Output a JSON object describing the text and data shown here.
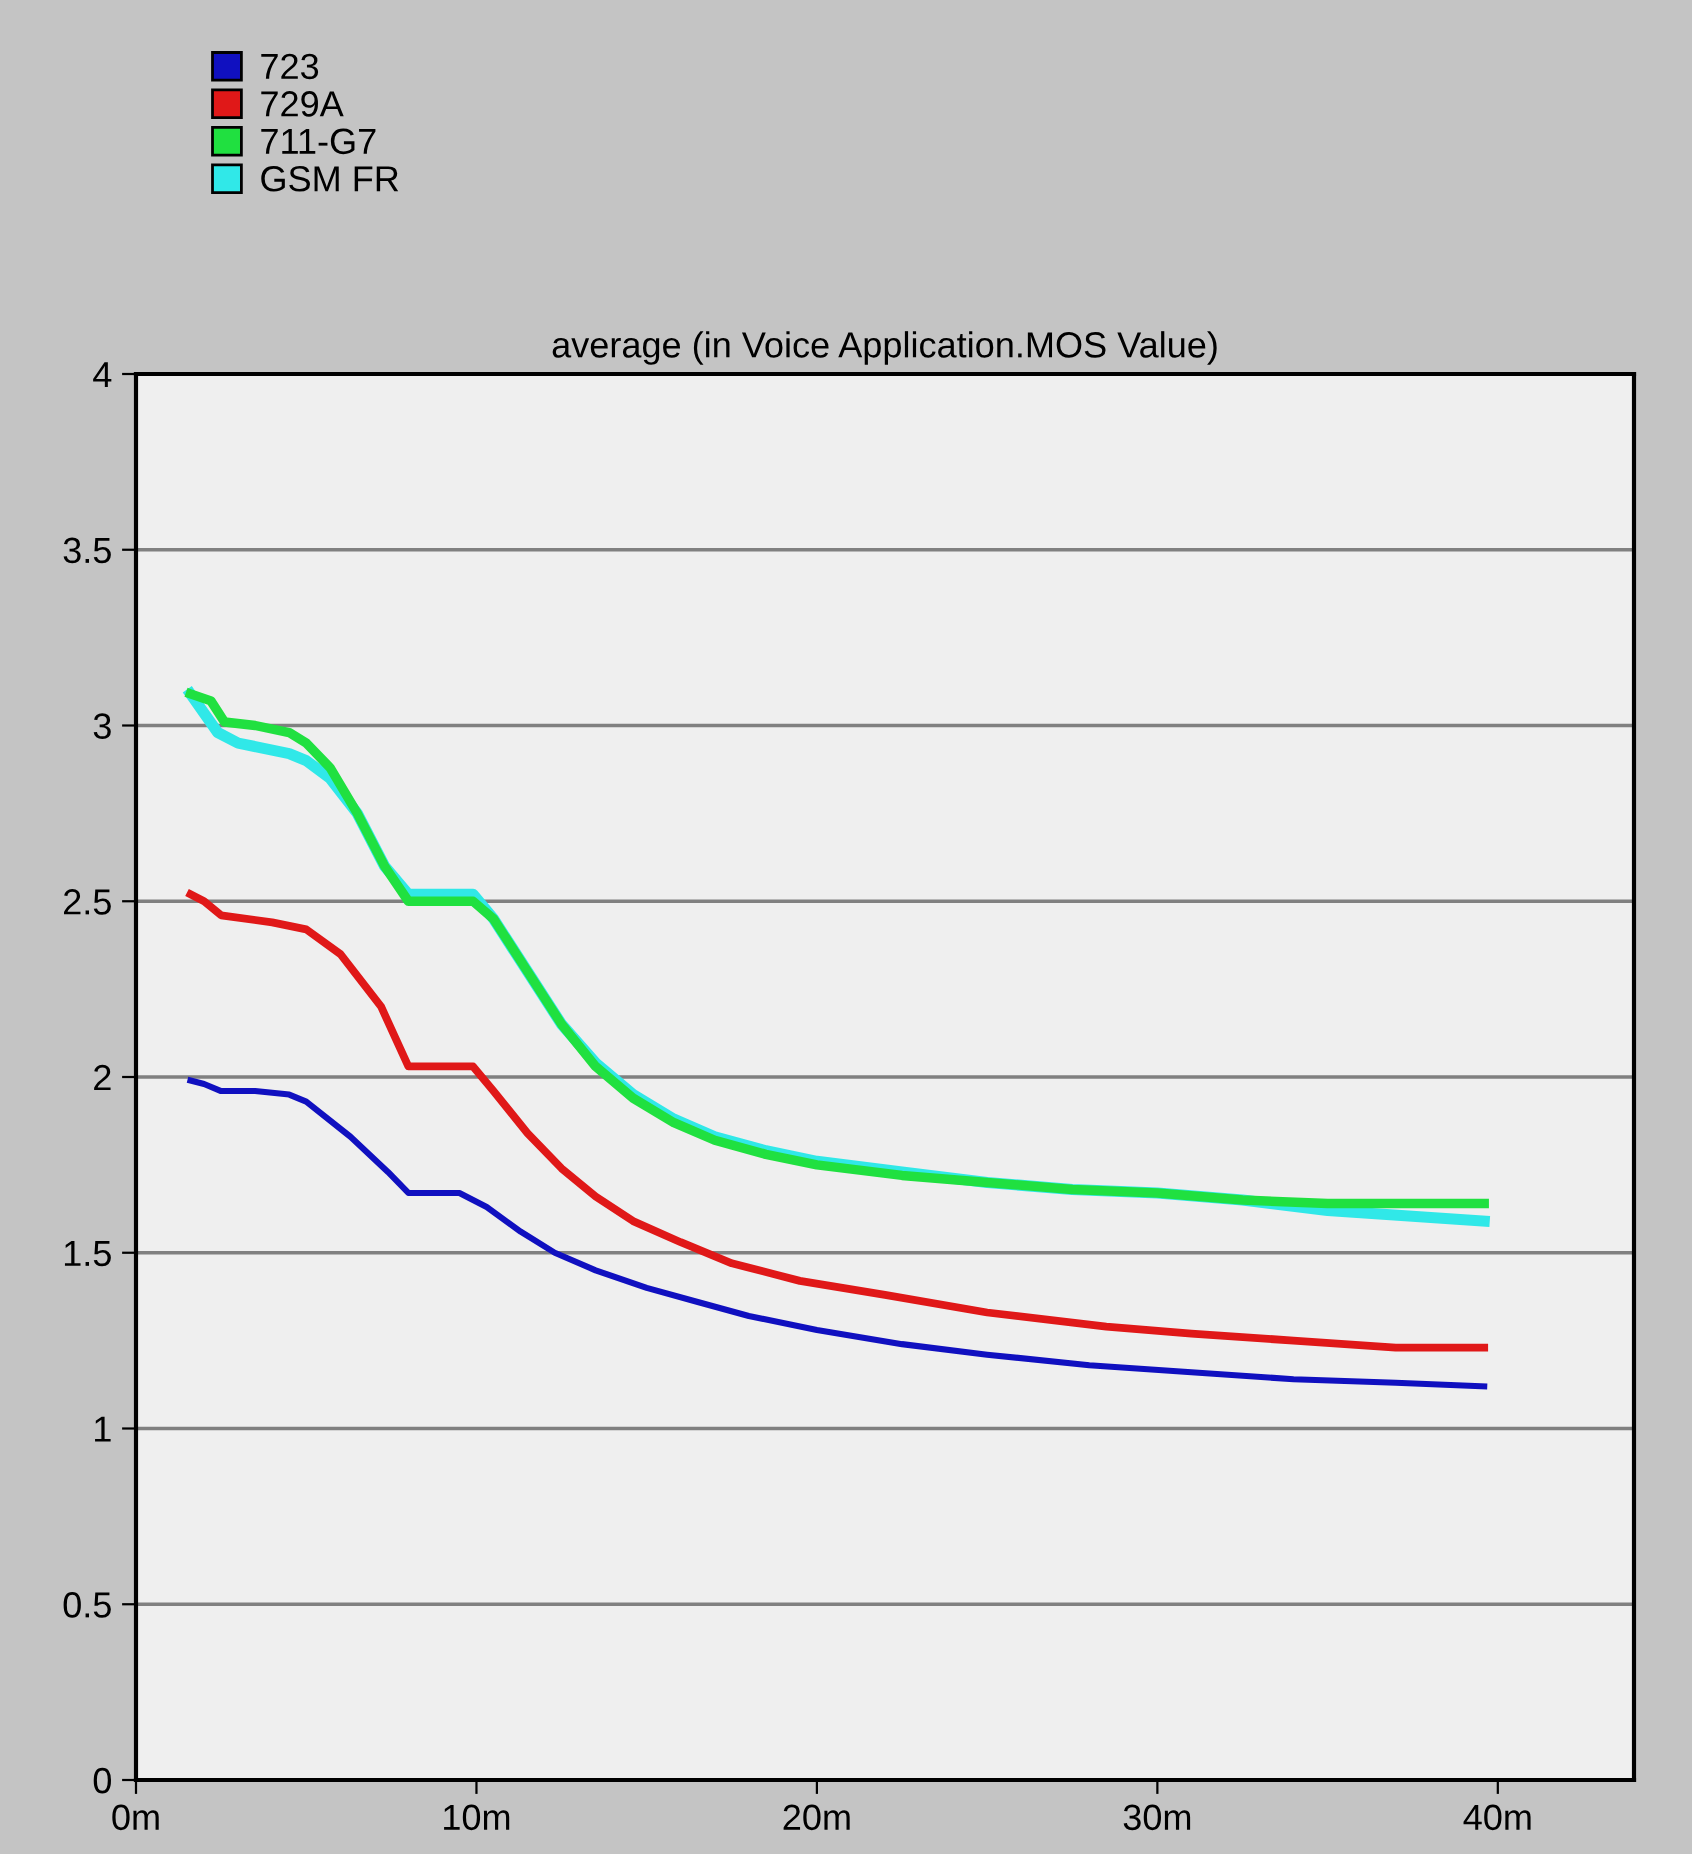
{
  "chart_data": {
    "type": "line",
    "title": "average (in Voice Application.MOS Value)",
    "xlim": [
      0,
      44
    ],
    "xticks": [
      {
        "value": 0,
        "label": "0m"
      },
      {
        "value": 10,
        "label": "10m"
      },
      {
        "value": 20,
        "label": "20m"
      },
      {
        "value": 30,
        "label": "30m"
      },
      {
        "value": 40,
        "label": "40m"
      }
    ],
    "ylim": [
      0,
      4
    ],
    "yticks": [
      0,
      0.5,
      1,
      1.5,
      2,
      2.5,
      3,
      3.5,
      4
    ],
    "grid": "y",
    "legend": "top left",
    "marker": "none",
    "line_style": "solid",
    "series": [
      {
        "name": "723",
        "color": "#1010c0",
        "x": [
          1.6,
          2.0,
          2.5,
          3.5,
          4.5,
          5.0,
          6.3,
          7.4,
          8.0,
          9.5,
          10.3,
          11.3,
          12.3,
          13.5,
          15,
          16.5,
          18,
          20,
          22.5,
          25,
          28,
          31,
          34,
          37,
          39.6
        ],
        "values": [
          1.99,
          1.98,
          1.96,
          1.96,
          1.95,
          1.93,
          1.83,
          1.73,
          1.67,
          1.67,
          1.63,
          1.56,
          1.5,
          1.45,
          1.4,
          1.36,
          1.32,
          1.28,
          1.24,
          1.21,
          1.18,
          1.16,
          1.14,
          1.13,
          1.12
        ]
      },
      {
        "name": "729A",
        "color": "#e01818",
        "x": [
          1.6,
          2.0,
          2.5,
          4,
          5,
          6,
          7.2,
          8.0,
          9.9,
          10.5,
          11.5,
          12.5,
          13.5,
          14.6,
          16,
          17.5,
          19.5,
          22,
          25,
          28.5,
          31,
          34,
          37,
          39.6
        ],
        "values": [
          2.52,
          2.5,
          2.46,
          2.44,
          2.42,
          2.35,
          2.2,
          2.03,
          2.03,
          1.96,
          1.84,
          1.74,
          1.66,
          1.59,
          1.53,
          1.47,
          1.42,
          1.38,
          1.33,
          1.29,
          1.27,
          1.25,
          1.23,
          1.23
        ]
      },
      {
        "name": "711-G7",
        "color": "#20e040",
        "x": [
          1.6,
          2.2,
          2.6,
          3.5,
          4.5,
          5.0,
          5.7,
          6.5,
          7.3,
          8.0,
          9.9,
          10.5,
          11.5,
          12.5,
          13.5,
          14.6,
          15.8,
          17,
          18.5,
          20,
          22.5,
          25,
          27.5,
          30,
          32.5,
          35,
          39.6
        ],
        "values": [
          3.09,
          3.07,
          3.01,
          3.0,
          2.98,
          2.95,
          2.88,
          2.75,
          2.6,
          2.5,
          2.5,
          2.45,
          2.3,
          2.15,
          2.03,
          1.94,
          1.87,
          1.82,
          1.78,
          1.75,
          1.72,
          1.7,
          1.68,
          1.67,
          1.65,
          1.64,
          1.64
        ]
      },
      {
        "name": "GSM FR",
        "color": "#30e8e8",
        "x": [
          1.6,
          2.4,
          3.0,
          4.5,
          5.0,
          5.7,
          6.5,
          7.3,
          8.0,
          9.9,
          10.5,
          11.5,
          12.5,
          13.5,
          14.6,
          15.8,
          17,
          18.5,
          20,
          22.5,
          25,
          27.5,
          30,
          32.5,
          35,
          39.6
        ],
        "values": [
          3.09,
          2.98,
          2.95,
          2.92,
          2.9,
          2.85,
          2.75,
          2.6,
          2.52,
          2.52,
          2.45,
          2.3,
          2.15,
          2.04,
          1.95,
          1.88,
          1.83,
          1.79,
          1.76,
          1.73,
          1.7,
          1.68,
          1.67,
          1.65,
          1.62,
          1.59
        ]
      }
    ]
  }
}
